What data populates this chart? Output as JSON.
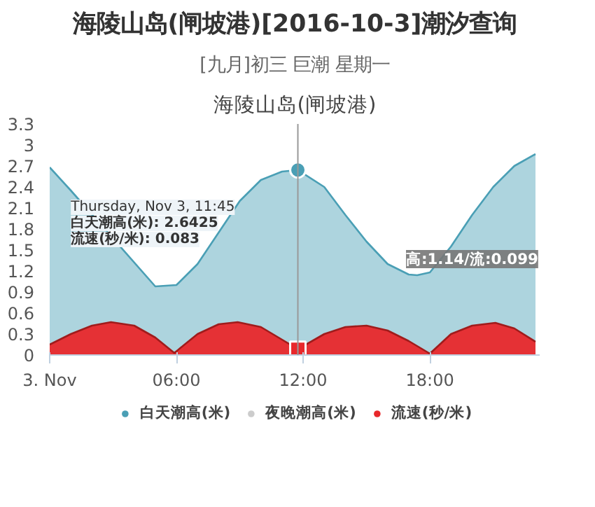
{
  "chart_data": {
    "type": "area",
    "title": "海陵山岛(闸坡港)",
    "subtitle": "[九月]初三 巨潮 星期一",
    "x": [
      0,
      1,
      2,
      3,
      4,
      5,
      6,
      7,
      8,
      9,
      10,
      11,
      11.75,
      13,
      14,
      15,
      16,
      17,
      17.4,
      18,
      19,
      20,
      21,
      22,
      23
    ],
    "series": [
      {
        "name": "白天潮高(米)",
        "color": "#4a9fb5",
        "values": [
          2.68,
          2.35,
          null,
          null,
          null,
          0.98,
          1.0,
          1.3,
          1.75,
          2.2,
          2.5,
          2.62,
          2.6425,
          2.4,
          2.0,
          1.62,
          1.3,
          1.15,
          1.14,
          1.18,
          1.55,
          2.0,
          2.4,
          2.7,
          2.87
        ]
      },
      {
        "name": "夜晚潮高(米)",
        "color": "#cccccc",
        "values": [
          null,
          null,
          null,
          null,
          null,
          null,
          null,
          null,
          null,
          null,
          null,
          null,
          null,
          null,
          null,
          null,
          null,
          null,
          null,
          null,
          null,
          null,
          null,
          null,
          null
        ]
      },
      {
        "name": "流速(秒/米)",
        "color": "#e8282b",
        "x": [
          0,
          1,
          2,
          2.9,
          4,
          5,
          5.9,
          7,
          8,
          8.9,
          10,
          11,
          11.75,
          13,
          14,
          15,
          16,
          17,
          18,
          19,
          20,
          21.1,
          22,
          23
        ],
        "values": [
          0.15,
          0.3,
          0.42,
          0.47,
          0.42,
          0.25,
          0.03,
          0.3,
          0.44,
          0.47,
          0.4,
          0.22,
          0.083,
          0.3,
          0.4,
          0.42,
          0.35,
          0.2,
          0.02,
          0.3,
          0.42,
          0.46,
          0.38,
          0.19
        ]
      }
    ],
    "xlim": [
      0,
      23.2
    ],
    "xticks": [
      {
        "value": 0,
        "label": "3. Nov"
      },
      {
        "value": 6,
        "label": "06:00"
      },
      {
        "value": 12,
        "label": "12:00"
      },
      {
        "value": 18,
        "label": "18:00"
      }
    ],
    "ylim": [
      0,
      3.3
    ],
    "yticks": [
      0,
      0.3,
      0.6,
      0.9,
      1.2,
      1.5,
      1.8,
      2.1,
      2.4,
      2.7,
      3,
      3.3
    ],
    "ref_lines": [
      {
        "axis": "x",
        "value": 11.75,
        "color": "#999999"
      }
    ],
    "annotations": [
      "海陵山岛(闸坡港)[2016-10-3]潮汐查询",
      "Thursday, Nov 3, 11:45",
      "白天潮高(米): 2.6425",
      "流速(秒/米): 0.083",
      {
        "text": "高:1.14/流:0.099",
        "x": 17.4,
        "y": 1.14
      }
    ],
    "grid": false,
    "legend": "bottom"
  }
}
